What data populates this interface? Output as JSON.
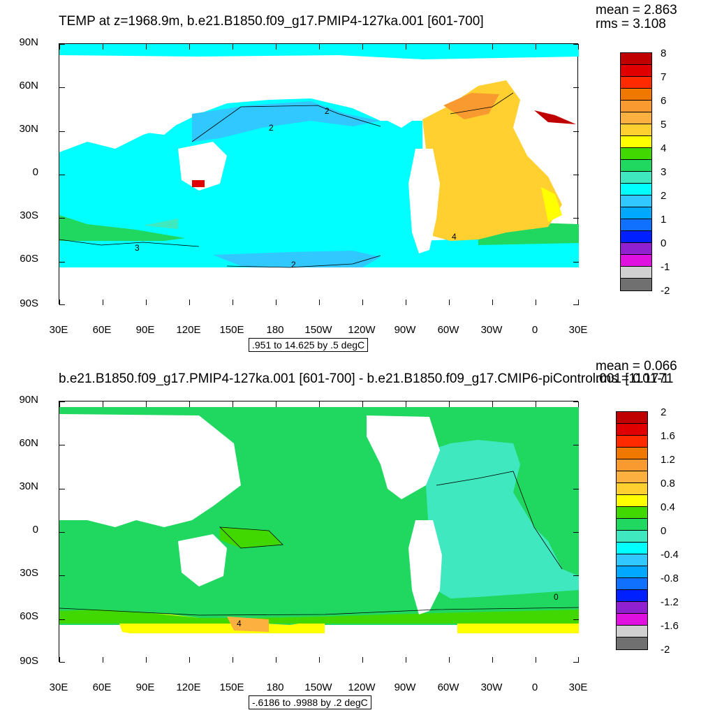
{
  "top_panel": {
    "title": "TEMP at z=1968.9m, b.e21.B1850.f09_g17.PMIP4-127ka.001 [601-700]",
    "mean": "mean = 2.863",
    "rms": "rms = 3.108",
    "range": ".951 to 14.625 by .5 degC",
    "colorbar_labels": [
      "8",
      "7",
      "6",
      "5",
      "4",
      "3",
      "2",
      "1",
      "0",
      "-1",
      "-2"
    ],
    "colorbar_colors": [
      "#c00000",
      "#e00000",
      "#ff2a00",
      "#f07800",
      "#f89a30",
      "#fcb040",
      "#ffd030",
      "#ffff00",
      "#40d800",
      "#20d860",
      "#40e8c0",
      "#00ffff",
      "#30c8ff",
      "#00a8ff",
      "#1070ff",
      "#0020ff",
      "#9020d0",
      "#e010e0",
      "#d0d0d0",
      "#707070"
    ],
    "contour_labels": [
      "2",
      "2",
      "3",
      "2",
      "4"
    ]
  },
  "bottom_panel": {
    "title": "b.e21.B1850.f09_g17.PMIP4-127ka.001 [601-700] - b.e21.B1850.f09_g17.CMIP6-piControl.001 [1101-1",
    "mean": "mean = 0.066",
    "rms": "rms = 0.1771",
    "range": "-.6186 to .9988 by .2 degC",
    "colorbar_labels": [
      "2",
      "1.6",
      "1.2",
      "0.8",
      "0.4",
      "0",
      "-0.4",
      "-0.8",
      "-1.2",
      "-1.6",
      "-2"
    ],
    "colorbar_colors": [
      "#c00000",
      "#e00000",
      "#ff2a00",
      "#f07800",
      "#f89a30",
      "#fcb040",
      "#ffd030",
      "#ffff00",
      "#40d800",
      "#20d860",
      "#40e8c0",
      "#00ffff",
      "#30c8ff",
      "#00a8ff",
      "#1070ff",
      "#0020ff",
      "#9020d0",
      "#e010e0",
      "#d0d0d0",
      "#707070"
    ],
    "contour_labels": [
      "0",
      "4"
    ]
  },
  "axes": {
    "lat_labels": [
      "90N",
      "60N",
      "30N",
      "0",
      "30S",
      "60S",
      "90S"
    ],
    "lon_labels": [
      "30E",
      "60E",
      "90E",
      "120E",
      "150E",
      "180",
      "150W",
      "120W",
      "90W",
      "60W",
      "30W",
      "0",
      "30E"
    ]
  }
}
